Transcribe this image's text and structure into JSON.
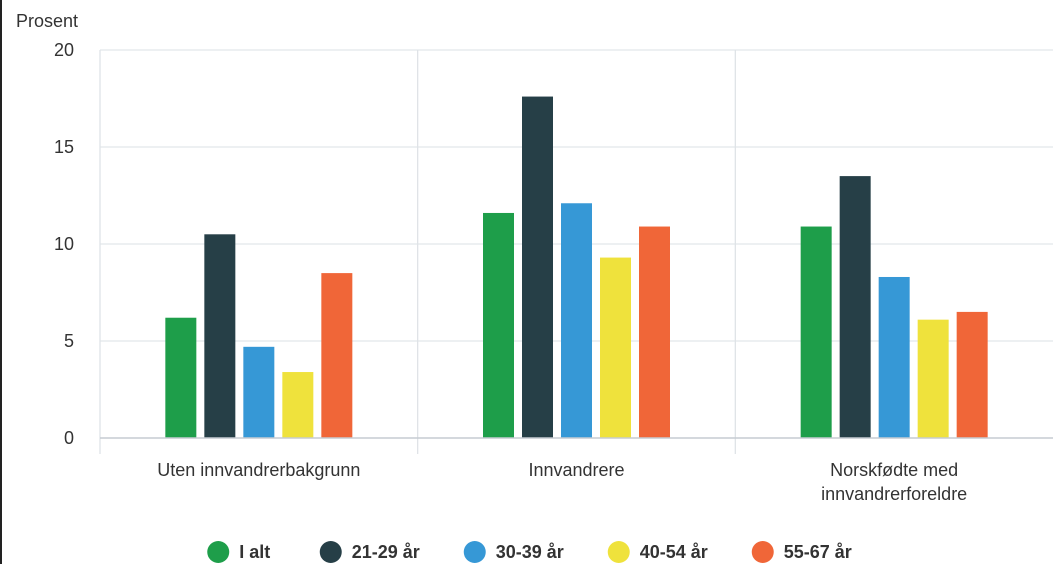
{
  "chart_data": {
    "type": "bar",
    "ylabel": "Prosent",
    "ylim": [
      0,
      20
    ],
    "yticks": [
      0,
      5,
      10,
      15,
      20
    ],
    "categories": [
      [
        "Uten innvandrerbakgrunn"
      ],
      [
        "Innvandrere"
      ],
      [
        "Norskfødte med",
        "innvandrerforeldre"
      ]
    ],
    "series": [
      {
        "name": "I alt",
        "color": "#1e9e4a",
        "values": [
          6.2,
          11.6,
          10.9
        ]
      },
      {
        "name": "21-29 år",
        "color": "#263f47",
        "values": [
          10.5,
          17.6,
          13.5
        ]
      },
      {
        "name": "30-39 år",
        "color": "#3698d6",
        "values": [
          4.7,
          12.1,
          8.3
        ]
      },
      {
        "name": "40-54 år",
        "color": "#efe23c",
        "values": [
          3.4,
          9.3,
          6.1
        ]
      },
      {
        "name": "55-67 år",
        "color": "#f06638",
        "values": [
          8.5,
          10.9,
          6.5
        ]
      }
    ],
    "grid": true,
    "legend": "bottom-center"
  }
}
